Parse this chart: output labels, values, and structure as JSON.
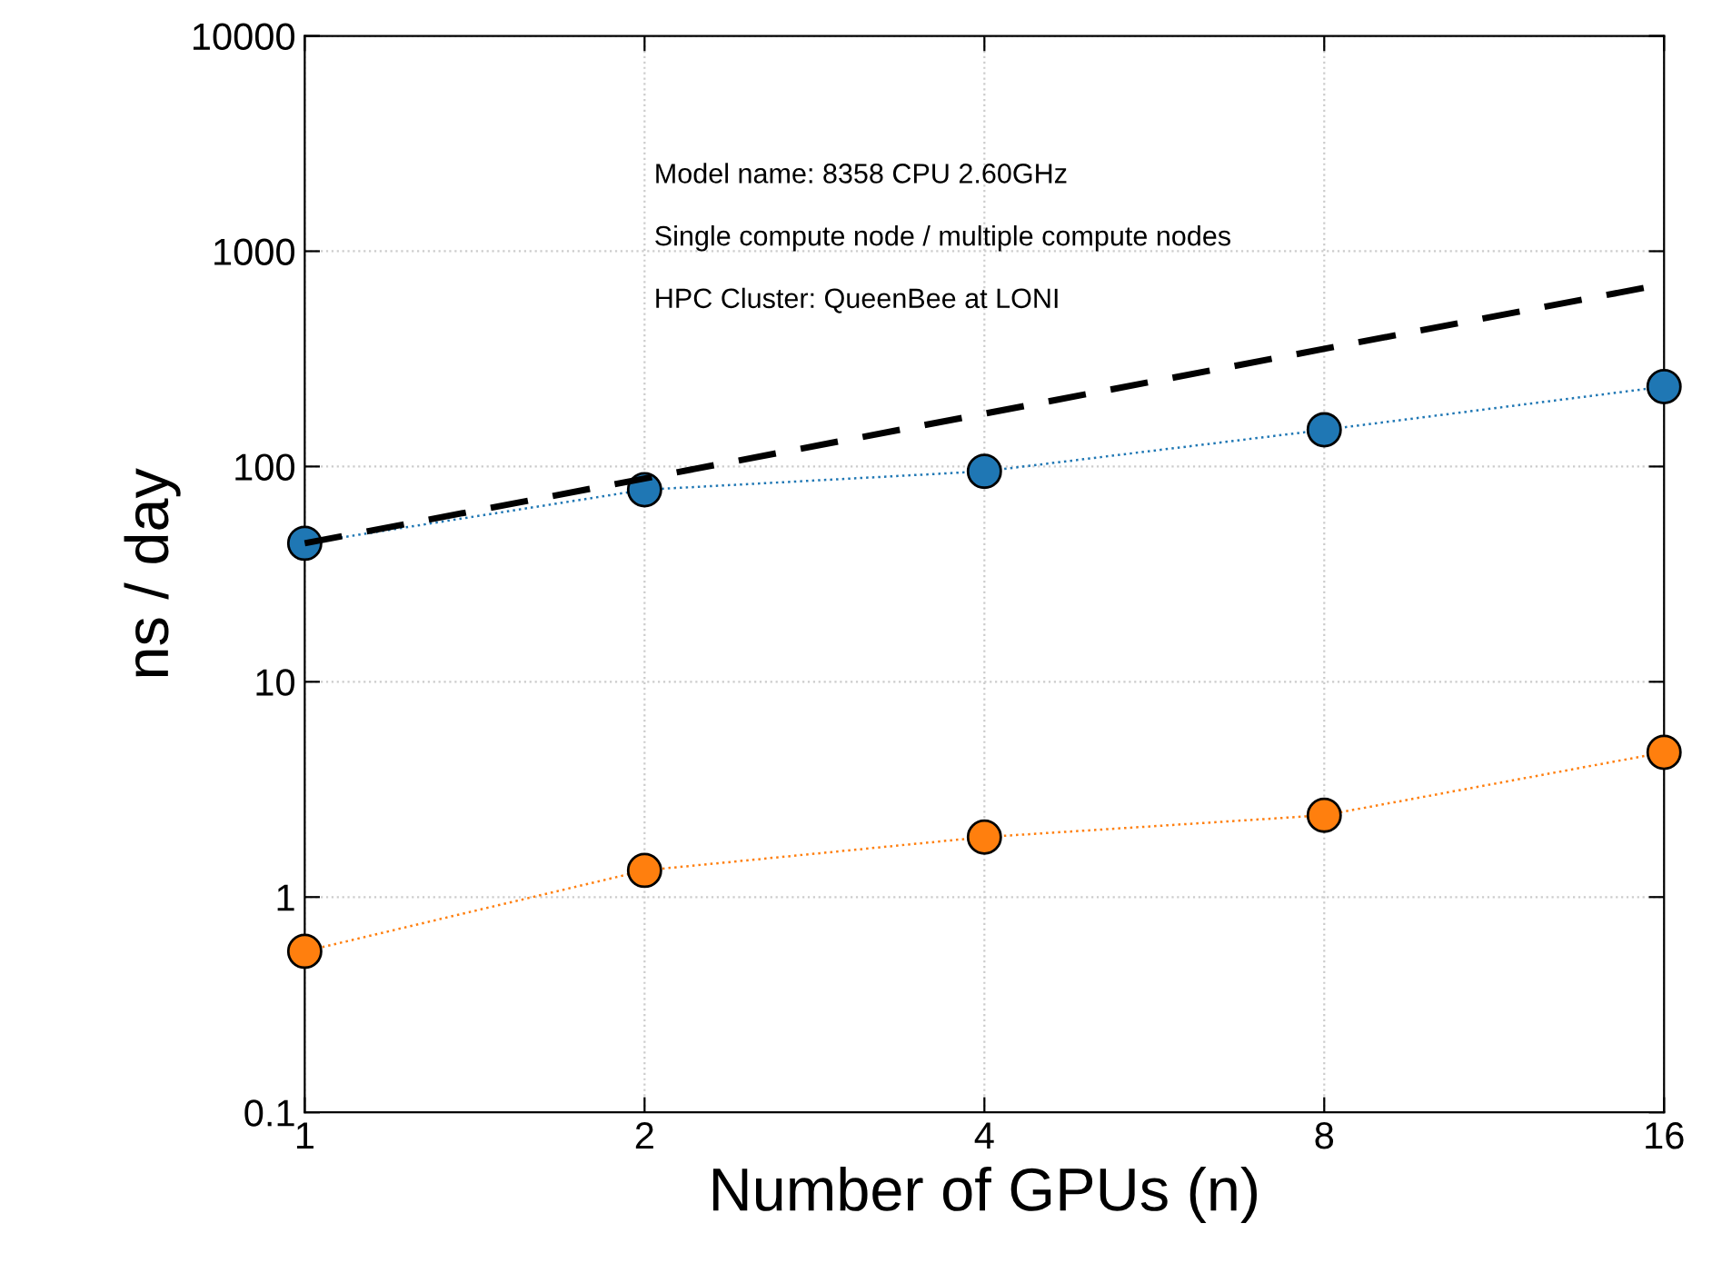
{
  "chart_data": {
    "type": "line",
    "xlabel": "Number of GPUs (n)",
    "ylabel": "ns / day",
    "x": [
      1,
      2,
      4,
      8,
      16
    ],
    "series": [
      {
        "color": "#1f77b4",
        "values": [
          44,
          78,
          95,
          148,
          235
        ],
        "marker": "circle",
        "line_style": "dotted"
      },
      {
        "color": "#ff7f0e",
        "values": [
          0.56,
          1.33,
          1.9,
          2.4,
          4.7
        ],
        "marker": "circle",
        "line_style": "dotted"
      },
      {
        "color": "#000000",
        "values": [
          44,
          88,
          176,
          352,
          704
        ],
        "marker": "none",
        "line_style": "dashed"
      }
    ],
    "log": "xy",
    "xlim": [
      1,
      16
    ],
    "xticks": [
      1,
      2,
      4,
      8,
      16
    ],
    "ylim": [
      0.1,
      10000
    ],
    "yticks": [
      0.1,
      1,
      10,
      100,
      1000,
      10000
    ],
    "grid": true,
    "annotations": [
      "Model name: 8358 CPU 2.60GHz",
      "Single compute node / multiple compute nodes",
      "HPC Cluster: QueenBee at LONI"
    ]
  }
}
